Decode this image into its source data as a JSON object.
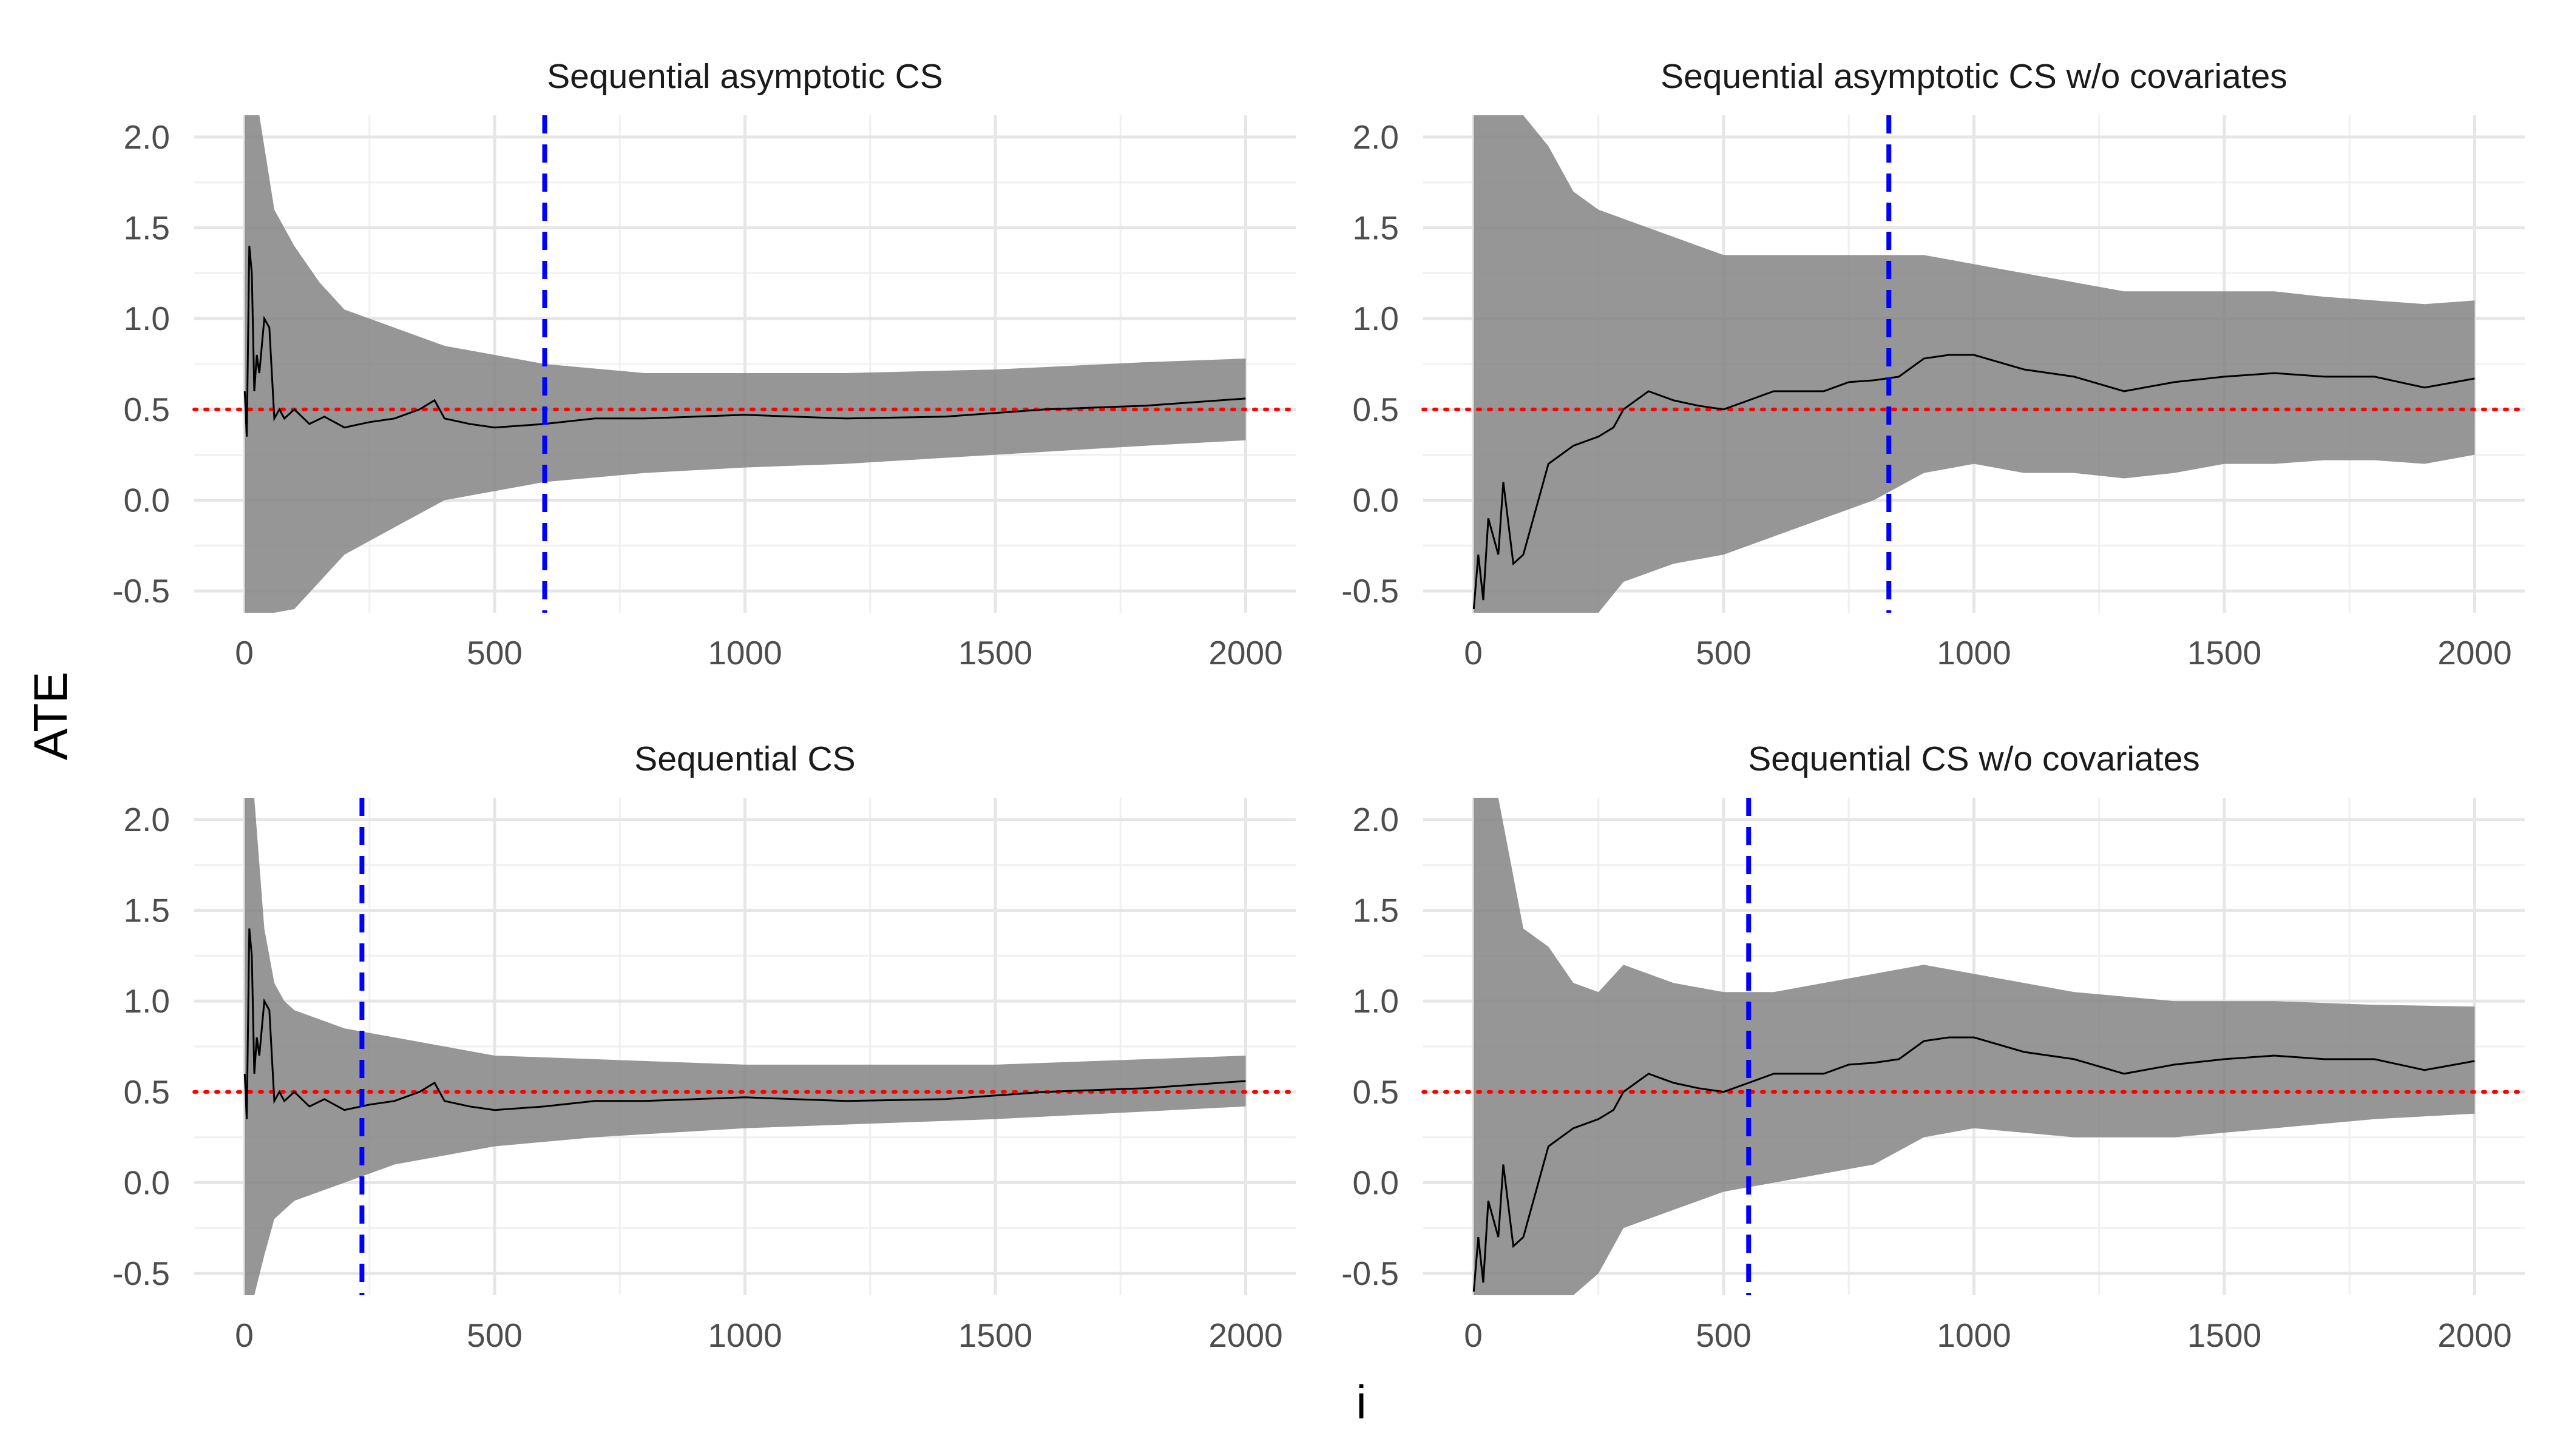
{
  "figure": {
    "xlabel": "i",
    "ylabel": "ATE"
  },
  "chart_data": [
    {
      "type": "line",
      "title": "Sequential asymptotic CS",
      "xlim": [
        -100,
        2100
      ],
      "ylim": [
        -0.62,
        2.12
      ],
      "xticks": [
        0,
        500,
        1000,
        1500,
        2000
      ],
      "yticks": [
        -0.5,
        0.0,
        0.5,
        1.0,
        1.5,
        2.0
      ],
      "xtick_labels": [
        "0",
        "500",
        "1000",
        "1500",
        "2000"
      ],
      "ytick_labels": [
        "-0.5",
        "0.0",
        "0.5",
        "1.0",
        "1.5",
        "2.0"
      ],
      "grid": true,
      "true_effect": 0.5,
      "stopping_time": 600,
      "estimate": {
        "x": [
          1,
          5,
          10,
          15,
          20,
          25,
          30,
          40,
          50,
          60,
          70,
          80,
          100,
          130,
          160,
          200,
          250,
          300,
          350,
          380,
          400,
          450,
          500,
          550,
          600,
          700,
          800,
          900,
          1000,
          1200,
          1400,
          1500,
          1600,
          1800,
          2000
        ],
        "y": [
          0.6,
          0.35,
          1.4,
          1.25,
          0.6,
          0.8,
          0.7,
          1.0,
          0.95,
          0.45,
          0.5,
          0.45,
          0.5,
          0.42,
          0.46,
          0.4,
          0.43,
          0.45,
          0.5,
          0.55,
          0.45,
          0.42,
          0.4,
          0.41,
          0.42,
          0.45,
          0.45,
          0.46,
          0.47,
          0.45,
          0.46,
          0.48,
          0.5,
          0.52,
          0.56
        ]
      },
      "band": {
        "x": [
          1,
          30,
          60,
          100,
          150,
          200,
          300,
          400,
          500,
          600,
          800,
          1000,
          1200,
          1500,
          1800,
          2000
        ],
        "lower": [
          -0.62,
          -0.62,
          -0.62,
          -0.6,
          -0.45,
          -0.3,
          -0.15,
          0.0,
          0.05,
          0.1,
          0.15,
          0.18,
          0.2,
          0.25,
          0.3,
          0.33
        ],
        "upper": [
          2.12,
          2.12,
          1.6,
          1.4,
          1.2,
          1.05,
          0.95,
          0.85,
          0.8,
          0.75,
          0.7,
          0.7,
          0.7,
          0.72,
          0.76,
          0.78
        ]
      }
    },
    {
      "type": "line",
      "title": "Sequential asymptotic CS w/o covariates",
      "xlim": [
        -100,
        2100
      ],
      "ylim": [
        -0.62,
        2.12
      ],
      "xticks": [
        0,
        500,
        1000,
        1500,
        2000
      ],
      "yticks": [
        -0.5,
        0.0,
        0.5,
        1.0,
        1.5,
        2.0
      ],
      "xtick_labels": [
        "0",
        "500",
        "1000",
        "1500",
        "2000"
      ],
      "ytick_labels": [
        "-0.5",
        "0.0",
        "0.5",
        "1.0",
        "1.5",
        "2.0"
      ],
      "grid": true,
      "true_effect": 0.5,
      "stopping_time": 830,
      "estimate": {
        "x": [
          1,
          10,
          20,
          30,
          40,
          50,
          60,
          80,
          100,
          150,
          200,
          250,
          280,
          300,
          350,
          400,
          450,
          500,
          550,
          600,
          700,
          750,
          800,
          850,
          900,
          950,
          1000,
          1100,
          1200,
          1300,
          1400,
          1500,
          1600,
          1700,
          1800,
          1900,
          2000
        ],
        "y": [
          -0.6,
          -0.3,
          -0.55,
          -0.1,
          -0.2,
          -0.3,
          0.1,
          -0.35,
          -0.3,
          0.2,
          0.3,
          0.35,
          0.4,
          0.5,
          0.6,
          0.55,
          0.52,
          0.5,
          0.55,
          0.6,
          0.6,
          0.65,
          0.66,
          0.68,
          0.78,
          0.8,
          0.8,
          0.72,
          0.68,
          0.6,
          0.65,
          0.68,
          0.7,
          0.68,
          0.68,
          0.62,
          0.67
        ]
      },
      "band": {
        "x": [
          1,
          50,
          100,
          150,
          200,
          250,
          300,
          400,
          500,
          600,
          700,
          800,
          900,
          1000,
          1100,
          1200,
          1300,
          1400,
          1500,
          1600,
          1700,
          1800,
          1900,
          2000
        ],
        "lower": [
          -0.62,
          -0.62,
          -0.62,
          -0.62,
          -0.62,
          -0.62,
          -0.45,
          -0.35,
          -0.3,
          -0.2,
          -0.1,
          0.0,
          0.15,
          0.2,
          0.15,
          0.15,
          0.12,
          0.15,
          0.2,
          0.2,
          0.22,
          0.22,
          0.2,
          0.25
        ],
        "upper": [
          2.12,
          2.12,
          2.12,
          1.95,
          1.7,
          1.6,
          1.55,
          1.45,
          1.35,
          1.35,
          1.35,
          1.35,
          1.35,
          1.3,
          1.25,
          1.2,
          1.15,
          1.15,
          1.15,
          1.15,
          1.12,
          1.1,
          1.08,
          1.1
        ]
      }
    },
    {
      "type": "line",
      "title": "Sequential CS",
      "xlim": [
        -100,
        2100
      ],
      "ylim": [
        -0.62,
        2.12
      ],
      "xticks": [
        0,
        500,
        1000,
        1500,
        2000
      ],
      "yticks": [
        -0.5,
        0.0,
        0.5,
        1.0,
        1.5,
        2.0
      ],
      "xtick_labels": [
        "0",
        "500",
        "1000",
        "1500",
        "2000"
      ],
      "ytick_labels": [
        "-0.5",
        "0.0",
        "0.5",
        "1.0",
        "1.5",
        "2.0"
      ],
      "grid": true,
      "true_effect": 0.5,
      "stopping_time": 235,
      "estimate": {
        "x": [
          1,
          5,
          10,
          15,
          20,
          25,
          30,
          40,
          50,
          60,
          70,
          80,
          100,
          130,
          160,
          200,
          250,
          300,
          350,
          380,
          400,
          450,
          500,
          550,
          600,
          700,
          800,
          900,
          1000,
          1200,
          1400,
          1500,
          1600,
          1800,
          2000
        ],
        "y": [
          0.6,
          0.35,
          1.4,
          1.25,
          0.6,
          0.8,
          0.7,
          1.0,
          0.95,
          0.45,
          0.5,
          0.45,
          0.5,
          0.42,
          0.46,
          0.4,
          0.43,
          0.45,
          0.5,
          0.55,
          0.45,
          0.42,
          0.4,
          0.41,
          0.42,
          0.45,
          0.45,
          0.46,
          0.47,
          0.45,
          0.46,
          0.48,
          0.5,
          0.52,
          0.56
        ]
      },
      "band": {
        "x": [
          1,
          20,
          40,
          60,
          80,
          100,
          150,
          200,
          300,
          400,
          500,
          700,
          1000,
          1500,
          2000
        ],
        "lower": [
          -0.62,
          -0.62,
          -0.4,
          -0.2,
          -0.15,
          -0.1,
          -0.05,
          0.0,
          0.1,
          0.15,
          0.2,
          0.25,
          0.3,
          0.35,
          0.42
        ],
        "upper": [
          2.12,
          2.12,
          1.4,
          1.1,
          1.0,
          0.95,
          0.9,
          0.85,
          0.8,
          0.75,
          0.7,
          0.68,
          0.65,
          0.65,
          0.7
        ]
      }
    },
    {
      "type": "line",
      "title": "Sequential CS w/o covariates",
      "xlim": [
        -100,
        2100
      ],
      "ylim": [
        -0.62,
        2.12
      ],
      "xticks": [
        0,
        500,
        1000,
        1500,
        2000
      ],
      "yticks": [
        -0.5,
        0.0,
        0.5,
        1.0,
        1.5,
        2.0
      ],
      "xtick_labels": [
        "0",
        "500",
        "1000",
        "1500",
        "2000"
      ],
      "ytick_labels": [
        "-0.5",
        "0.0",
        "0.5",
        "1.0",
        "1.5",
        "2.0"
      ],
      "grid": true,
      "true_effect": 0.5,
      "stopping_time": 550,
      "estimate": {
        "x": [
          1,
          10,
          20,
          30,
          40,
          50,
          60,
          80,
          100,
          150,
          200,
          250,
          280,
          300,
          350,
          400,
          450,
          500,
          550,
          600,
          700,
          750,
          800,
          850,
          900,
          950,
          1000,
          1100,
          1200,
          1300,
          1400,
          1500,
          1600,
          1700,
          1800,
          1900,
          2000
        ],
        "y": [
          -0.6,
          -0.3,
          -0.55,
          -0.1,
          -0.2,
          -0.3,
          0.1,
          -0.35,
          -0.3,
          0.2,
          0.3,
          0.35,
          0.4,
          0.5,
          0.6,
          0.55,
          0.52,
          0.5,
          0.55,
          0.6,
          0.6,
          0.65,
          0.66,
          0.68,
          0.78,
          0.8,
          0.8,
          0.72,
          0.68,
          0.6,
          0.65,
          0.68,
          0.7,
          0.68,
          0.68,
          0.62,
          0.67
        ]
      },
      "band": {
        "x": [
          1,
          50,
          100,
          150,
          200,
          250,
          300,
          400,
          500,
          600,
          700,
          800,
          900,
          1000,
          1200,
          1400,
          1600,
          1800,
          2000
        ],
        "lower": [
          -0.62,
          -0.62,
          -0.62,
          -0.62,
          -0.62,
          -0.5,
          -0.25,
          -0.15,
          -0.05,
          0.0,
          0.05,
          0.1,
          0.25,
          0.3,
          0.25,
          0.25,
          0.3,
          0.35,
          0.38
        ],
        "upper": [
          2.12,
          2.12,
          1.4,
          1.3,
          1.1,
          1.05,
          1.2,
          1.1,
          1.05,
          1.05,
          1.1,
          1.15,
          1.2,
          1.15,
          1.05,
          1.0,
          1.0,
          0.98,
          0.97
        ]
      }
    }
  ]
}
